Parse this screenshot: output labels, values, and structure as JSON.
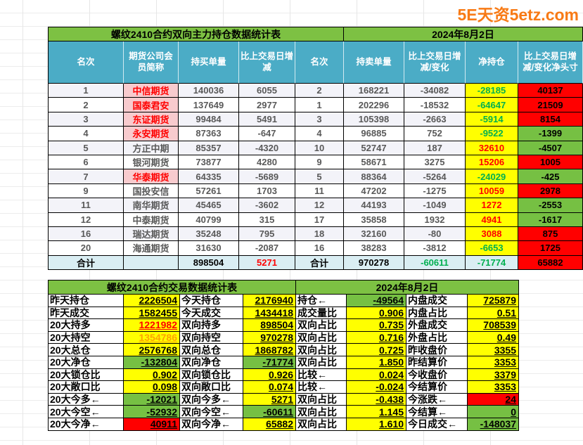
{
  "logo": {
    "text": "5E天资5etz.com",
    "color": "#F87A15"
  },
  "colors": {
    "header_blue": "#4BACC6",
    "title_green": "#7DC143",
    "highlight_yellow": "#FFFF00",
    "positive_red_bg": "#FF0000",
    "negative_green_bg": "#76C043",
    "top_rank_pink": "#F8CBCE",
    "total_row_blue": "#DAEEF3",
    "green_text": "#00B050",
    "red_text": "#FF0000",
    "orange_text": "#FFA300",
    "logo_orange": "#F87A15"
  },
  "table1": {
    "title": "螺纹2410合约双向主力持仓数据统计表",
    "date": "2024年8月2日",
    "headers": [
      "名次",
      "期货公司会员简称",
      "持买单量",
      "比上交易日增减",
      "名次",
      "持卖单量",
      "比上交易日增减/变化",
      "净持仓",
      "比上交易日增减/变化净头寸"
    ],
    "rows": [
      {
        "rank": "1",
        "company": "中信期货",
        "pink": true,
        "buy": "140036",
        "chg": "6055",
        "rank2": "2",
        "sell": "168221",
        "chg2": "-34082",
        "net": "-28185",
        "netc": "green",
        "head": "40137",
        "headbg": "red"
      },
      {
        "rank": "2",
        "company": "国泰君安",
        "pink": true,
        "buy": "137649",
        "chg": "2977",
        "rank2": "1",
        "sell": "202296",
        "chg2": "-18532",
        "net": "-64647",
        "netc": "green",
        "head": "21509",
        "headbg": "red"
      },
      {
        "rank": "3",
        "company": "东证期货",
        "pink": true,
        "buy": "99484",
        "chg": "5491",
        "rank2": "3",
        "sell": "105398",
        "chg2": "-2663",
        "net": "-5914",
        "netc": "green",
        "head": "8154",
        "headbg": "red"
      },
      {
        "rank": "4",
        "company": "永安期货",
        "pink": true,
        "buy": "87363",
        "chg": "-647",
        "rank2": "4",
        "sell": "96885",
        "chg2": "752",
        "net": "-9522",
        "netc": "green",
        "head": "-1399",
        "headbg": "green"
      },
      {
        "rank": "5",
        "company": "方正中期",
        "pink": false,
        "buy": "85357",
        "chg": "-4320",
        "rank2": "10",
        "sell": "52747",
        "chg2": "187",
        "net": "32610",
        "netc": "red",
        "head": "-4507",
        "headbg": "green"
      },
      {
        "rank": "6",
        "company": "银河期货",
        "pink": false,
        "buy": "73877",
        "chg": "4280",
        "rank2": "9",
        "sell": "58671",
        "chg2": "3275",
        "net": "15206",
        "netc": "red",
        "head": "1005",
        "headbg": "red"
      },
      {
        "rank": "7",
        "company": "华泰期货",
        "pink": true,
        "buy": "64335",
        "chg": "-5689",
        "rank2": "5",
        "sell": "88364",
        "chg2": "-5264",
        "net": "-24029",
        "netc": "green",
        "head": "-425",
        "headbg": "green"
      },
      {
        "rank": "9",
        "company": "国投安信",
        "pink": false,
        "buy": "57261",
        "chg": "1703",
        "rank2": "11",
        "sell": "47202",
        "chg2": "-1275",
        "net": "10059",
        "netc": "red",
        "head": "2978",
        "headbg": "red"
      },
      {
        "rank": "11",
        "company": "南华期货",
        "pink": false,
        "buy": "45465",
        "chg": "-3602",
        "rank2": "12",
        "sell": "44193",
        "chg2": "-1049",
        "net": "1272",
        "netc": "red",
        "head": "-2553",
        "headbg": "green"
      },
      {
        "rank": "12",
        "company": "中泰期货",
        "pink": false,
        "buy": "40799",
        "chg": "315",
        "rank2": "17",
        "sell": "35858",
        "chg2": "1932",
        "net": "4941",
        "netc": "red",
        "head": "-1617",
        "headbg": "green"
      },
      {
        "rank": "16",
        "company": "瑞达期货",
        "pink": false,
        "buy": "35248",
        "chg": "795",
        "rank2": "18",
        "sell": "32160",
        "chg2": "-80",
        "net": "3088",
        "netc": "red",
        "head": "875",
        "headbg": "red"
      },
      {
        "rank": "20",
        "company": "海通期货",
        "pink": false,
        "buy": "31630",
        "chg": "-2087",
        "rank2": "16",
        "sell": "38283",
        "chg2": "-3812",
        "net": "-6653",
        "netc": "green",
        "head": "1725",
        "headbg": "red"
      }
    ],
    "total": {
      "label": "合计",
      "company": "",
      "buy": "898504",
      "chg": "5271",
      "label2": "合计",
      "sell": "970278",
      "chg2": "-60611",
      "net": "-71774",
      "head": "65882"
    }
  },
  "table2": {
    "title": "螺纹2410合约交易数据统计表",
    "date": "2024年8月2日",
    "rows": [
      [
        {
          "t": "昨天持仓",
          "k": "lab"
        },
        {
          "t": "2226504",
          "k": "val"
        },
        {
          "t": "今天持仓",
          "k": "lab"
        },
        {
          "t": "2176940",
          "k": "val"
        },
        {
          "t": "持仓←",
          "k": "lab"
        },
        {
          "t": "-49564",
          "k": "val bgg"
        },
        {
          "t": "内盘成交",
          "k": "lab"
        },
        {
          "t": "725879",
          "k": "val"
        }
      ],
      [
        {
          "t": "昨天成交",
          "k": "lab"
        },
        {
          "t": "1582455",
          "k": "val"
        },
        {
          "t": "今天成交",
          "k": "lab"
        },
        {
          "t": "1434418",
          "k": "val"
        },
        {
          "t": "成交量比",
          "k": "lab"
        },
        {
          "t": "0.906",
          "k": "val"
        },
        {
          "t": "内盘占比",
          "k": "lab"
        },
        {
          "t": "0.51",
          "k": "val"
        }
      ],
      [
        {
          "t": "20大持多",
          "k": "lab"
        },
        {
          "t": "1221982",
          "k": "val vred"
        },
        {
          "t": "双向持多",
          "k": "lab"
        },
        {
          "t": "898504",
          "k": "val"
        },
        {
          "t": "双向占比",
          "k": "lab"
        },
        {
          "t": "0.735",
          "k": "val"
        },
        {
          "t": "外盘成交",
          "k": "lab"
        },
        {
          "t": "708539",
          "k": "val"
        }
      ],
      [
        {
          "t": "20大持空",
          "k": "lab"
        },
        {
          "t": "1354786",
          "k": "val vorange"
        },
        {
          "t": "双向持空",
          "k": "lab"
        },
        {
          "t": "970278",
          "k": "val"
        },
        {
          "t": "双向占比",
          "k": "lab"
        },
        {
          "t": "0.716",
          "k": "val"
        },
        {
          "t": "外盘占比",
          "k": "lab"
        },
        {
          "t": "0.49",
          "k": "val"
        }
      ],
      [
        {
          "t": "20大总仓",
          "k": "lab"
        },
        {
          "t": "2576768",
          "k": "val"
        },
        {
          "t": "双向总仓",
          "k": "lab"
        },
        {
          "t": "1868782",
          "k": "val"
        },
        {
          "t": "双向占比",
          "k": "lab"
        },
        {
          "t": "0.725",
          "k": "val"
        },
        {
          "t": "昨收盘价",
          "k": "lab"
        },
        {
          "t": "3355",
          "k": "val"
        }
      ],
      [
        {
          "t": "20大净仓",
          "k": "lab"
        },
        {
          "t": "-132804",
          "k": "val bgg"
        },
        {
          "t": "双向净仓",
          "k": "lab"
        },
        {
          "t": "-71774",
          "k": "val bgg"
        },
        {
          "t": "双向占比",
          "k": "lab"
        },
        {
          "t": "1.850",
          "k": "val"
        },
        {
          "t": "昨结算价",
          "k": "lab"
        },
        {
          "t": "3353",
          "k": "val"
        }
      ],
      [
        {
          "t": "20大锁仓比",
          "k": "lab"
        },
        {
          "t": "0.902",
          "k": "val"
        },
        {
          "t": "双向锁仓比",
          "k": "lab"
        },
        {
          "t": "0.926",
          "k": "val"
        },
        {
          "t": "比较←",
          "k": "lab"
        },
        {
          "t": "0.024",
          "k": "val"
        },
        {
          "t": "今收盘价",
          "k": "lab"
        },
        {
          "t": "3379",
          "k": "val"
        }
      ],
      [
        {
          "t": "20大敞口比",
          "k": "lab"
        },
        {
          "t": "0.098",
          "k": "val"
        },
        {
          "t": "双向敞口比",
          "k": "lab"
        },
        {
          "t": "0.074",
          "k": "val"
        },
        {
          "t": "比较←",
          "k": "lab"
        },
        {
          "t": "-0.024",
          "k": "val"
        },
        {
          "t": "今结算价",
          "k": "lab"
        },
        {
          "t": "3353",
          "k": "val"
        }
      ],
      [
        {
          "t": "20大今多←",
          "k": "lab"
        },
        {
          "t": "-12021",
          "k": "val bgg"
        },
        {
          "t": "双向今多←",
          "k": "lab"
        },
        {
          "t": "5271",
          "k": "val"
        },
        {
          "t": "双向占比",
          "k": "lab"
        },
        {
          "t": "-0.438",
          "k": "val"
        },
        {
          "t": "今涨跌←",
          "k": "lab"
        },
        {
          "t": "24",
          "k": "val bgr"
        }
      ],
      [
        {
          "t": "20大今空←",
          "k": "lab"
        },
        {
          "t": "-52932",
          "k": "val bgg"
        },
        {
          "t": "双向今空←",
          "k": "lab"
        },
        {
          "t": "-60611",
          "k": "val bgg"
        },
        {
          "t": "双向占比",
          "k": "lab"
        },
        {
          "t": "1.145",
          "k": "val"
        },
        {
          "t": "今结算←",
          "k": "lab"
        },
        {
          "t": "0",
          "k": "val bgg"
        }
      ],
      [
        {
          "t": "20大今净←",
          "k": "lab"
        },
        {
          "t": "40911",
          "k": "val bgr"
        },
        {
          "t": "双向今净←",
          "k": "lab"
        },
        {
          "t": "65882",
          "k": "val"
        },
        {
          "t": "双向占比",
          "k": "lab"
        },
        {
          "t": "1.610",
          "k": "val"
        },
        {
          "t": "今日成交←",
          "k": "lab"
        },
        {
          "t": "-148037",
          "k": "val bgg"
        }
      ]
    ]
  }
}
